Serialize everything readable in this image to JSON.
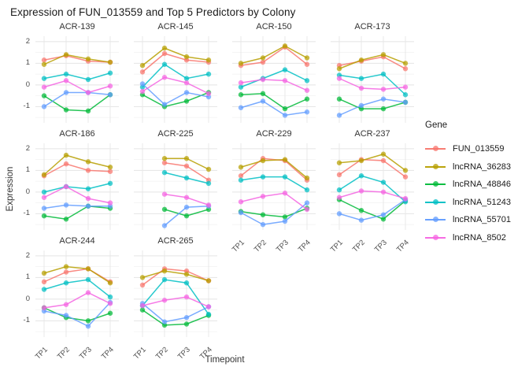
{
  "title": "Expression of FUN_013559 and Top 5 Predictors by Colony",
  "y_axis": {
    "label": "Expression",
    "tick_labels": [
      "2",
      "1",
      "0",
      "-1"
    ]
  },
  "x_axis": {
    "label": "Timepoint",
    "tick_labels": [
      "TP1",
      "TP2",
      "TP3",
      "TP4"
    ]
  },
  "legend": {
    "title": "Gene",
    "entries": [
      {
        "label": "FUN_013559",
        "color": "#F8766D"
      },
      {
        "label": "lncRNA_36283",
        "color": "#B79F00"
      },
      {
        "label": "lncRNA_48846",
        "color": "#00BA38"
      },
      {
        "label": "lncRNA_51243",
        "color": "#00BFC4"
      },
      {
        "label": "lncRNA_55701",
        "color": "#619CFF"
      },
      {
        "label": "lncRNA_8502",
        "color": "#F564E2"
      }
    ]
  },
  "chart_data": {
    "type": "line",
    "title": "Expression of FUN_013559 and Top 5 Predictors by Colony",
    "xlabel": "Timepoint",
    "ylabel": "Expression",
    "x": [
      "TP1",
      "TP2",
      "TP3",
      "TP4"
    ],
    "ylim": [
      -1.75,
      2.25
    ],
    "yticks": [
      2,
      1,
      0,
      -1
    ],
    "yticks_minor": [
      1.5,
      0.5,
      -0.5,
      -1.5
    ],
    "grid": true,
    "legend_position": "right",
    "series_names": [
      "FUN_013559",
      "lncRNA_36283",
      "lncRNA_48846",
      "lncRNA_51243",
      "lncRNA_55701",
      "lncRNA_8502"
    ],
    "series_colors": [
      "#F8766D",
      "#B79F00",
      "#00BA38",
      "#00BFC4",
      "#619CFF",
      "#F564E2"
    ],
    "facets": [
      {
        "name": "ACR-139",
        "row": 0,
        "col": 0,
        "show_x_ticks": false,
        "series": {
          "FUN_013559": [
            1.15,
            1.35,
            1.1,
            1.05
          ],
          "lncRNA_36283": [
            0.95,
            1.4,
            1.2,
            1.05
          ],
          "lncRNA_48846": [
            -0.5,
            -1.15,
            -1.2,
            -0.45
          ],
          "lncRNA_51243": [
            0.3,
            0.5,
            0.25,
            0.55
          ],
          "lncRNA_55701": [
            -1.0,
            -0.35,
            -0.35,
            -0.45
          ],
          "lncRNA_8502": [
            -0.1,
            0.2,
            -0.35,
            -0.05
          ]
        }
      },
      {
        "name": "ACR-145",
        "row": 0,
        "col": 1,
        "show_x_ticks": false,
        "series": {
          "FUN_013559": [
            0.6,
            1.45,
            1.15,
            1.05
          ],
          "lncRNA_36283": [
            0.9,
            1.7,
            1.3,
            1.15
          ],
          "lncRNA_48846": [
            -0.45,
            -1.0,
            -0.75,
            -0.35
          ],
          "lncRNA_51243": [
            -0.1,
            0.95,
            0.3,
            0.5
          ],
          "lncRNA_55701": [
            0.05,
            -0.9,
            -0.35,
            -0.55
          ],
          "lncRNA_8502": [
            -0.3,
            0.35,
            0.1,
            -0.4
          ]
        }
      },
      {
        "name": "ACR-150",
        "row": 0,
        "col": 2,
        "show_x_ticks": false,
        "series": {
          "FUN_013559": [
            0.9,
            1.05,
            1.75,
            0.95
          ],
          "lncRNA_36283": [
            1.0,
            1.25,
            1.8,
            1.25
          ],
          "lncRNA_48846": [
            -0.45,
            -0.4,
            -1.1,
            -0.65
          ],
          "lncRNA_51243": [
            -0.1,
            0.3,
            0.7,
            0.2
          ],
          "lncRNA_55701": [
            -1.05,
            -0.75,
            -1.4,
            -1.25
          ],
          "lncRNA_8502": [
            0.1,
            0.25,
            0.2,
            -0.25
          ]
        }
      },
      {
        "name": "ACR-173",
        "row": 0,
        "col": 3,
        "show_x_ticks": false,
        "series": {
          "FUN_013559": [
            0.9,
            1.1,
            1.3,
            0.75
          ],
          "lncRNA_36283": [
            0.75,
            1.15,
            1.4,
            1.0
          ],
          "lncRNA_48846": [
            -0.65,
            -1.1,
            -1.1,
            -0.8
          ],
          "lncRNA_51243": [
            0.45,
            0.3,
            0.5,
            -0.45
          ],
          "lncRNA_55701": [
            -1.4,
            -0.95,
            -0.65,
            -0.8
          ],
          "lncRNA_8502": [
            0.3,
            -0.15,
            -0.2,
            -0.1
          ]
        }
      },
      {
        "name": "ACR-186",
        "row": 1,
        "col": 0,
        "show_x_ticks": false,
        "series": {
          "FUN_013559": [
            0.75,
            1.3,
            1.0,
            0.95
          ],
          "lncRNA_36283": [
            0.8,
            1.7,
            1.4,
            1.15
          ],
          "lncRNA_48846": [
            -1.1,
            -1.25,
            -0.65,
            -0.75
          ],
          "lncRNA_51243": [
            0.0,
            0.25,
            0.15,
            0.4
          ],
          "lncRNA_55701": [
            -0.75,
            -0.6,
            -0.65,
            -0.65
          ],
          "lncRNA_8502": [
            -0.25,
            0.25,
            -0.3,
            -0.5
          ]
        }
      },
      {
        "name": "ACR-225",
        "row": 1,
        "col": 1,
        "show_x_ticks": false,
        "series": {
          "FUN_013559": [
            null,
            1.35,
            1.2,
            0.55
          ],
          "lncRNA_36283": [
            null,
            1.55,
            1.55,
            1.05
          ],
          "lncRNA_48846": [
            null,
            -0.8,
            -1.1,
            -0.8
          ],
          "lncRNA_51243": [
            null,
            0.9,
            0.65,
            0.4
          ],
          "lncRNA_55701": [
            null,
            -1.55,
            -0.7,
            -0.65
          ],
          "lncRNA_8502": [
            null,
            -0.1,
            -0.25,
            -0.6
          ]
        }
      },
      {
        "name": "ACR-229",
        "row": 1,
        "col": 2,
        "show_x_ticks": true,
        "series": {
          "FUN_013559": [
            0.75,
            1.55,
            1.45,
            0.55
          ],
          "lncRNA_36283": [
            1.15,
            1.45,
            1.5,
            0.65
          ],
          "lncRNA_48846": [
            -0.9,
            -1.05,
            -1.15,
            -0.75
          ],
          "lncRNA_51243": [
            0.55,
            0.7,
            0.7,
            0.1
          ],
          "lncRNA_55701": [
            -0.95,
            -1.5,
            -1.35,
            -0.5
          ],
          "lncRNA_8502": [
            -0.45,
            -0.2,
            -0.05,
            -0.8
          ]
        }
      },
      {
        "name": "ACR-237",
        "row": 1,
        "col": 3,
        "show_x_ticks": true,
        "series": {
          "FUN_013559": [
            0.8,
            1.5,
            1.45,
            0.7
          ],
          "lncRNA_36283": [
            1.35,
            1.45,
            1.75,
            1.0
          ],
          "lncRNA_48846": [
            -0.35,
            -0.85,
            -1.25,
            -0.4
          ],
          "lncRNA_51243": [
            0.1,
            0.75,
            0.45,
            -0.45
          ],
          "lncRNA_55701": [
            -1.0,
            -1.3,
            -1.05,
            -0.35
          ],
          "lncRNA_8502": [
            -0.25,
            0.05,
            0.0,
            -0.3
          ]
        }
      },
      {
        "name": "ACR-244",
        "row": 2,
        "col": 0,
        "show_x_ticks": true,
        "series": {
          "FUN_013559": [
            0.8,
            1.25,
            1.4,
            0.8
          ],
          "lncRNA_36283": [
            1.2,
            1.5,
            1.4,
            0.75
          ],
          "lncRNA_48846": [
            -0.4,
            -0.85,
            -1.0,
            -0.65
          ],
          "lncRNA_51243": [
            0.45,
            0.75,
            0.9,
            0.1
          ],
          "lncRNA_55701": [
            -0.55,
            -0.75,
            -1.25,
            -0.15
          ],
          "lncRNA_8502": [
            -0.4,
            -0.25,
            0.3,
            -0.2
          ]
        }
      },
      {
        "name": "ACR-265",
        "row": 2,
        "col": 1,
        "show_x_ticks": true,
        "series": {
          "FUN_013559": [
            0.65,
            1.4,
            1.3,
            0.85
          ],
          "lncRNA_36283": [
            1.0,
            1.3,
            1.15,
            0.85
          ],
          "lncRNA_48846": [
            -0.5,
            -1.2,
            -1.15,
            -0.75
          ],
          "lncRNA_51243": [
            -0.3,
            0.9,
            0.75,
            -0.7
          ],
          "lncRNA_55701": [
            -0.2,
            -1.05,
            -0.85,
            -0.35
          ],
          "lncRNA_8502": [
            -0.3,
            -0.05,
            0.1,
            -0.35
          ]
        }
      }
    ]
  }
}
